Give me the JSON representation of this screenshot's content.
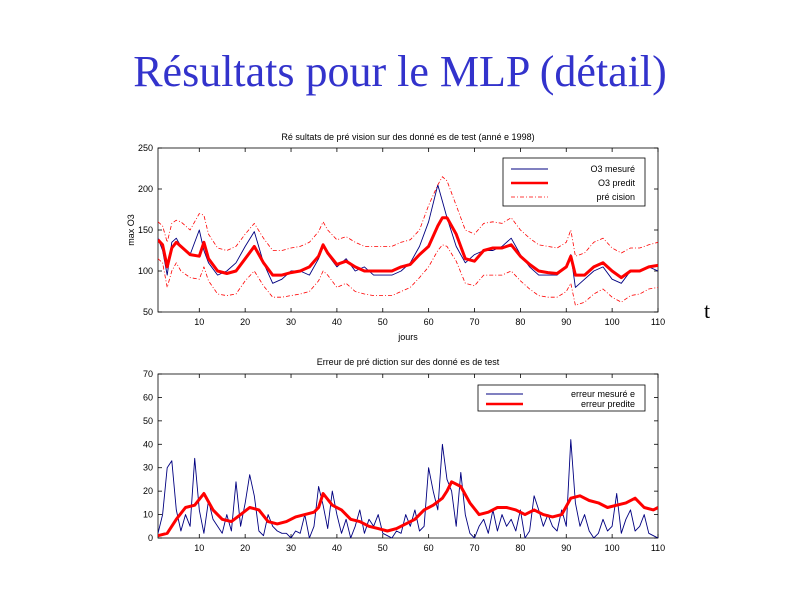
{
  "slide": {
    "title": "Résultats pour le MLP (détail)",
    "side_label": "t"
  },
  "chart_data": [
    {
      "type": "line",
      "title": "Ré sultats de pré vision sur des donné es de test (anné e 1998)",
      "xlabel": "jours",
      "ylabel": "max O3",
      "xlim": [
        1,
        110
      ],
      "ylim": [
        50,
        250
      ],
      "xticks": [
        10,
        20,
        30,
        40,
        50,
        60,
        70,
        80,
        90,
        100,
        110
      ],
      "yticks": [
        50,
        100,
        150,
        200,
        250
      ],
      "grid": false,
      "legend_position": "top-right",
      "series": [
        {
          "name": "O3 mesuré",
          "color": "#000080",
          "stroke": "thin-solid",
          "x": [
            1,
            2,
            3,
            4,
            5,
            6,
            8,
            10,
            11,
            12,
            14,
            16,
            18,
            20,
            22,
            24,
            26,
            28,
            30,
            32,
            34,
            36,
            37,
            38,
            40,
            42,
            44,
            46,
            48,
            50,
            52,
            54,
            56,
            58,
            60,
            62,
            63,
            64,
            66,
            68,
            70,
            72,
            74,
            76,
            78,
            80,
            82,
            84,
            86,
            88,
            90,
            91,
            92,
            94,
            96,
            98,
            100,
            102,
            104,
            106,
            108,
            110
          ],
          "values": [
            140,
            125,
            95,
            135,
            140,
            130,
            120,
            150,
            125,
            110,
            95,
            100,
            110,
            130,
            148,
            110,
            85,
            90,
            100,
            100,
            95,
            115,
            130,
            120,
            105,
            115,
            100,
            105,
            95,
            95,
            95,
            100,
            110,
            130,
            160,
            205,
            185,
            165,
            130,
            110,
            120,
            125,
            125,
            130,
            140,
            120,
            105,
            95,
            95,
            95,
            105,
            120,
            80,
            90,
            100,
            105,
            90,
            85,
            100,
            100,
            105,
            100
          ]
        },
        {
          "name": "O3 predit",
          "color": "#ff0000",
          "stroke": "thick-solid",
          "x": [
            1,
            2,
            3,
            4,
            5,
            6,
            8,
            10,
            11,
            12,
            14,
            16,
            18,
            20,
            22,
            24,
            26,
            28,
            30,
            32,
            34,
            36,
            37,
            38,
            40,
            42,
            44,
            46,
            48,
            50,
            52,
            54,
            56,
            58,
            60,
            62,
            63,
            64,
            66,
            68,
            70,
            72,
            74,
            76,
            78,
            80,
            82,
            84,
            86,
            88,
            90,
            91,
            92,
            94,
            96,
            98,
            100,
            102,
            104,
            106,
            108,
            110
          ],
          "values": [
            138,
            132,
            105,
            128,
            135,
            130,
            120,
            118,
            135,
            115,
            100,
            97,
            100,
            115,
            130,
            110,
            95,
            95,
            98,
            100,
            105,
            118,
            132,
            122,
            108,
            112,
            105,
            100,
            100,
            100,
            100,
            105,
            108,
            120,
            130,
            155,
            165,
            165,
            145,
            115,
            112,
            125,
            128,
            128,
            132,
            118,
            108,
            100,
            98,
            97,
            105,
            118,
            95,
            95,
            105,
            110,
            100,
            92,
            100,
            100,
            105,
            107
          ]
        },
        {
          "name": "pré cision",
          "color": "#ff0000",
          "stroke": "dash-dot",
          "x": [
            1,
            2,
            3,
            4,
            5,
            6,
            8,
            10,
            11,
            12,
            14,
            16,
            18,
            20,
            22,
            24,
            26,
            28,
            30,
            32,
            34,
            36,
            37,
            38,
            40,
            42,
            44,
            46,
            48,
            50,
            52,
            54,
            56,
            58,
            60,
            62,
            63,
            64,
            66,
            68,
            70,
            72,
            74,
            76,
            78,
            80,
            82,
            84,
            86,
            88,
            90,
            91,
            92,
            94,
            96,
            98,
            100,
            102,
            104,
            106,
            108,
            110
          ],
          "values": [
            160,
            155,
            135,
            158,
            162,
            160,
            150,
            170,
            168,
            145,
            128,
            125,
            130,
            145,
            158,
            140,
            125,
            125,
            128,
            130,
            135,
            148,
            160,
            150,
            138,
            142,
            135,
            130,
            130,
            130,
            130,
            135,
            138,
            150,
            180,
            205,
            215,
            210,
            180,
            150,
            145,
            158,
            160,
            158,
            165,
            150,
            140,
            132,
            130,
            128,
            135,
            150,
            118,
            122,
            135,
            140,
            128,
            122,
            128,
            128,
            132,
            135
          ]
        },
        {
          "name": "",
          "color": "#ff0000",
          "stroke": "dash-dot",
          "x": [
            1,
            2,
            3,
            4,
            5,
            6,
            8,
            10,
            11,
            12,
            14,
            16,
            18,
            20,
            22,
            24,
            26,
            28,
            30,
            32,
            34,
            36,
            37,
            38,
            40,
            42,
            44,
            46,
            48,
            50,
            52,
            54,
            56,
            58,
            60,
            62,
            63,
            64,
            66,
            68,
            70,
            72,
            74,
            76,
            78,
            80,
            82,
            84,
            86,
            88,
            90,
            91,
            92,
            94,
            96,
            98,
            100,
            102,
            104,
            106,
            108,
            110
          ],
          "values": [
            115,
            110,
            80,
            100,
            110,
            100,
            92,
            90,
            105,
            88,
            72,
            70,
            72,
            88,
            100,
            82,
            68,
            68,
            70,
            72,
            75,
            88,
            100,
            95,
            80,
            85,
            75,
            72,
            70,
            70,
            70,
            75,
            80,
            92,
            105,
            125,
            132,
            130,
            112,
            85,
            82,
            95,
            95,
            95,
            100,
            88,
            78,
            70,
            68,
            68,
            75,
            85,
            58,
            62,
            72,
            78,
            68,
            62,
            70,
            72,
            78,
            80
          ]
        }
      ]
    },
    {
      "type": "line",
      "title": "Erreur de pré diction sur des donné es de test",
      "xlabel": "",
      "ylabel": "",
      "xlim": [
        1,
        110
      ],
      "ylim": [
        0,
        70
      ],
      "xticks": [
        10,
        20,
        30,
        40,
        50,
        60,
        70,
        80,
        90,
        100,
        110
      ],
      "yticks": [
        0,
        10,
        20,
        30,
        40,
        50,
        60,
        70
      ],
      "grid": false,
      "legend_position": "top-right",
      "series": [
        {
          "name": "erreur mesuré e",
          "color": "#000080",
          "stroke": "thin-solid",
          "x": [
            1,
            2,
            3,
            4,
            5,
            6,
            7,
            8,
            9,
            10,
            11,
            12,
            13,
            14,
            15,
            16,
            17,
            18,
            19,
            20,
            21,
            22,
            23,
            24,
            25,
            26,
            27,
            28,
            29,
            30,
            31,
            32,
            33,
            34,
            35,
            36,
            37,
            38,
            39,
            40,
            41,
            42,
            43,
            44,
            45,
            46,
            47,
            48,
            49,
            50,
            51,
            52,
            53,
            54,
            55,
            56,
            57,
            58,
            59,
            60,
            61,
            62,
            63,
            64,
            65,
            66,
            67,
            68,
            69,
            70,
            71,
            72,
            73,
            74,
            75,
            76,
            77,
            78,
            79,
            80,
            81,
            82,
            83,
            84,
            85,
            86,
            87,
            88,
            89,
            90,
            91,
            92,
            93,
            94,
            95,
            96,
            97,
            98,
            99,
            100,
            101,
            102,
            103,
            104,
            105,
            106,
            107,
            108,
            109,
            110
          ],
          "values": [
            2,
            10,
            30,
            33,
            12,
            3,
            10,
            5,
            34,
            12,
            2,
            16,
            8,
            5,
            2,
            10,
            3,
            24,
            5,
            15,
            27,
            18,
            3,
            1,
            10,
            5,
            3,
            2,
            2,
            0,
            3,
            2,
            10,
            0,
            5,
            22,
            14,
            4,
            20,
            10,
            2,
            8,
            0,
            5,
            12,
            2,
            8,
            5,
            10,
            2,
            1,
            0,
            3,
            2,
            10,
            5,
            12,
            3,
            5,
            30,
            20,
            12,
            40,
            25,
            20,
            5,
            28,
            10,
            2,
            0,
            5,
            8,
            2,
            12,
            3,
            10,
            5,
            8,
            3,
            12,
            0,
            3,
            18,
            12,
            5,
            10,
            5,
            3,
            12,
            5,
            42,
            15,
            5,
            10,
            3,
            0,
            2,
            8,
            3,
            5,
            19,
            2,
            8,
            12,
            3,
            5,
            10,
            2,
            1,
            0
          ]
        },
        {
          "name": "erreur predite",
          "color": "#ff0000",
          "stroke": "thick-solid",
          "x": [
            1,
            3,
            5,
            7,
            9,
            11,
            13,
            15,
            17,
            19,
            21,
            23,
            25,
            27,
            29,
            31,
            33,
            35,
            36,
            37,
            39,
            41,
            43,
            45,
            47,
            49,
            51,
            53,
            55,
            57,
            59,
            61,
            63,
            64,
            65,
            67,
            69,
            71,
            73,
            75,
            77,
            79,
            81,
            83,
            85,
            87,
            89,
            91,
            93,
            95,
            97,
            99,
            101,
            103,
            105,
            107,
            109,
            110
          ],
          "values": [
            1,
            2,
            8,
            13,
            14,
            19,
            12,
            8,
            7,
            10,
            13,
            12,
            7,
            6,
            7,
            9,
            10,
            11,
            13,
            19,
            14,
            12,
            8,
            7,
            5,
            4,
            3,
            4,
            6,
            8,
            12,
            14,
            17,
            20,
            24,
            22,
            15,
            10,
            11,
            13,
            13,
            12,
            10,
            12,
            10,
            9,
            10,
            17,
            18,
            16,
            15,
            13,
            14,
            15,
            17,
            13,
            12,
            13
          ]
        }
      ]
    }
  ]
}
